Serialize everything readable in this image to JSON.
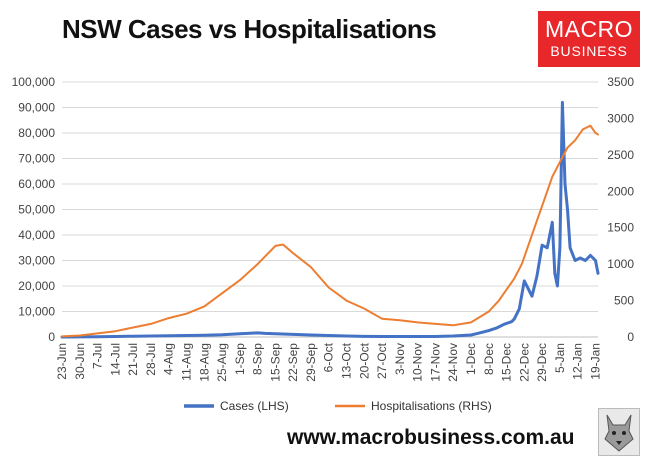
{
  "header": {
    "title": "NSW Cases vs Hospitalisations"
  },
  "logo": {
    "line1": "MACRO",
    "line2": "BUSINESS"
  },
  "footer": {
    "url": "www.macrobusiness.com.au"
  },
  "colors": {
    "cases": "#4472C4",
    "hospitalisations": "#ED7D31"
  },
  "chart_data": {
    "type": "line",
    "title": "NSW Cases vs Hospitalisations",
    "categories": [
      "23-Jun",
      "30-Jun",
      "7-Jul",
      "14-Jul",
      "21-Jul",
      "28-Jul",
      "4-Aug",
      "11-Aug",
      "18-Aug",
      "25-Aug",
      "1-Sep",
      "8-Sep",
      "15-Sep",
      "22-Sep",
      "29-Sep",
      "6-Oct",
      "13-Oct",
      "20-Oct",
      "27-Oct",
      "3-Nov",
      "10-Nov",
      "17-Nov",
      "24-Nov",
      "1-Dec",
      "8-Dec",
      "15-Dec",
      "22-Dec",
      "29-Dec",
      "5-Jan",
      "12-Jan",
      "19-Jan"
    ],
    "y_left": {
      "ylim": [
        0,
        100000
      ],
      "ticks": [
        "0",
        "10,000",
        "20,000",
        "30,000",
        "40,000",
        "50,000",
        "60,000",
        "70,000",
        "80,000",
        "90,000",
        "100,000"
      ]
    },
    "y_right": {
      "ylim": [
        0,
        3500
      ],
      "ticks": [
        "0",
        "500",
        "1000",
        "1500",
        "2000",
        "2500",
        "3000",
        "3500"
      ]
    },
    "legend": {
      "position": "bottom"
    },
    "grid": true,
    "series": [
      {
        "name": "Cases (LHS)",
        "axis": "left",
        "x": [
          0,
          7,
          14,
          21,
          28,
          35,
          42,
          49,
          56,
          63,
          70,
          74,
          77,
          80,
          84,
          91,
          98,
          105,
          112,
          119,
          126,
          133,
          140,
          147,
          154,
          161,
          164,
          168,
          171,
          174,
          177,
          178,
          180,
          182,
          184,
          185,
          187,
          189,
          191,
          193,
          194,
          195,
          196,
          197,
          198,
          199,
          200,
          202,
          204,
          206,
          208,
          210,
          211
        ],
        "values": [
          0,
          50,
          100,
          180,
          300,
          400,
          500,
          600,
          700,
          900,
          1300,
          1500,
          1600,
          1400,
          1300,
          1000,
          800,
          600,
          400,
          250,
          200,
          200,
          180,
          200,
          400,
          800,
          1500,
          2500,
          3500,
          5000,
          6000,
          7000,
          11000,
          22000,
          18000,
          16000,
          24000,
          36000,
          35000,
          45000,
          25000,
          20000,
          35000,
          92000,
          60000,
          50000,
          35000,
          30000,
          31000,
          30000,
          32000,
          30000,
          25000
        ]
      },
      {
        "name": "Hospitalisations (RHS)",
        "axis": "right",
        "x": [
          0,
          7,
          14,
          21,
          28,
          35,
          42,
          49,
          56,
          63,
          70,
          77,
          84,
          87,
          91,
          98,
          105,
          112,
          119,
          126,
          133,
          140,
          147,
          154,
          161,
          168,
          172,
          175,
          178,
          181,
          184,
          187,
          190,
          193,
          196,
          199,
          202,
          205,
          208,
          210,
          211
        ],
        "values": [
          8,
          20,
          50,
          80,
          130,
          180,
          260,
          320,
          420,
          600,
          780,
          1000,
          1250,
          1270,
          1150,
          960,
          680,
          500,
          390,
          250,
          230,
          200,
          180,
          160,
          200,
          350,
          500,
          650,
          800,
          1000,
          1300,
          1600,
          1900,
          2200,
          2400,
          2600,
          2700,
          2850,
          2900,
          2800,
          2780
        ]
      }
    ]
  }
}
